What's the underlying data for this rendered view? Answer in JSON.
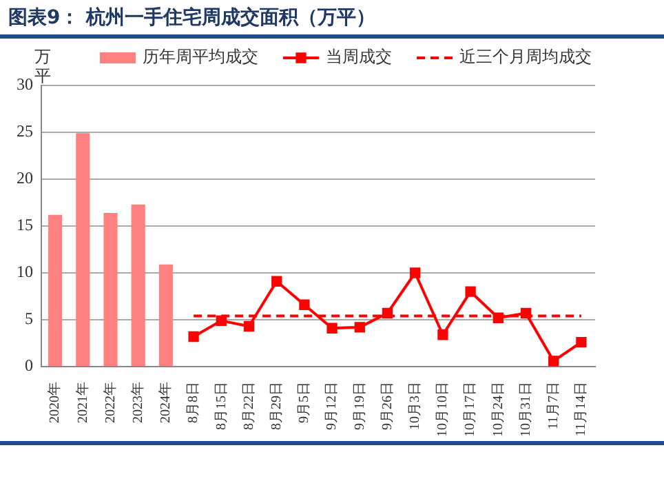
{
  "chart_data": {
    "type": "bar",
    "title": "图表9：  杭州一手住宅周成交面积（万平）",
    "ylabel": "万平",
    "categories": [
      "2020年",
      "2021年",
      "2022年",
      "2023年",
      "2024年",
      "8月8日",
      "8月15日",
      "8月22日",
      "8月29日",
      "9月5日",
      "9月12日",
      "9月19日",
      "9月26日",
      "10月3日",
      "10月10日",
      "10月17日",
      "10月24日",
      "10月31日",
      "11月7日",
      "11月14日"
    ],
    "series": [
      {
        "name": "历年周平均成交",
        "color": "#ff8080",
        "values": [
          16.2,
          24.9,
          16.4,
          17.3,
          10.9,
          null,
          null,
          null,
          null,
          null,
          null,
          null,
          null,
          null,
          null,
          null,
          null,
          null,
          null,
          null
        ]
      },
      {
        "name": "当周成交",
        "type": "line",
        "color": "#ff0000",
        "marker": "square",
        "line_style": "solid",
        "values": [
          null,
          null,
          null,
          null,
          null,
          3.2,
          4.9,
          4.3,
          9.1,
          6.6,
          4.1,
          4.2,
          5.7,
          10.0,
          3.4,
          8.0,
          5.2,
          5.7,
          0.6,
          2.6
        ]
      },
      {
        "name": "近三个月周均成交",
        "type": "line",
        "color": "#ff0000",
        "marker": "none",
        "line_style": "dashed",
        "values": [
          null,
          null,
          null,
          null,
          null,
          5.4,
          5.4,
          5.4,
          5.4,
          5.4,
          5.4,
          5.4,
          5.4,
          5.4,
          5.4,
          5.4,
          5.4,
          5.4,
          5.4,
          5.4
        ]
      }
    ],
    "ylim": [
      0,
      30
    ],
    "yticks": [
      0,
      5,
      10,
      15,
      20,
      25,
      30
    ],
    "grid": "y",
    "legend": "top"
  }
}
